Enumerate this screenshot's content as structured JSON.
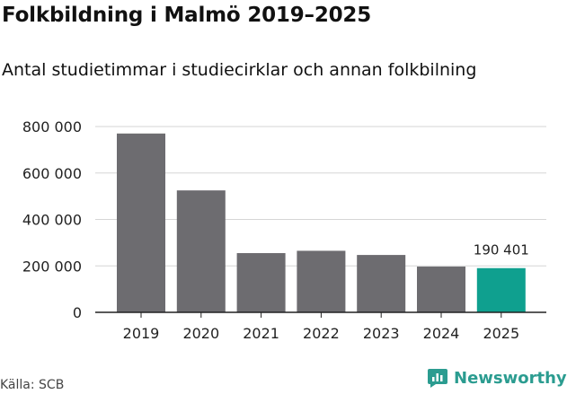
{
  "chart_data": {
    "type": "bar",
    "title": "Folkbildning i Malmö 2019–2025",
    "subtitle": "Antal studietimmar i studiecirklar och annan folkbilning",
    "categories": [
      "2019",
      "2020",
      "2021",
      "2022",
      "2023",
      "2024",
      "2025"
    ],
    "values": [
      770000,
      525000,
      255000,
      265000,
      247000,
      197000,
      190401
    ],
    "ylim": [
      0,
      800000
    ],
    "yticks": [
      0,
      200000,
      400000,
      600000,
      800000
    ],
    "ytick_labels": [
      "0",
      "200 000",
      "400 000",
      "600 000",
      "800 000"
    ],
    "grid": true,
    "highlight_index": 6,
    "data_labels": [
      {
        "index": 6,
        "text": "190 401"
      }
    ],
    "colors": {
      "bar": "#6d6c70",
      "highlight": "#0fa08f",
      "grid": "#d6d6d6",
      "axis": "#222222"
    }
  },
  "source": "Källa: SCB",
  "brand": {
    "name": "Newsworthy",
    "icon": "newsworthy-logo-icon",
    "color": "#2b9c90"
  }
}
